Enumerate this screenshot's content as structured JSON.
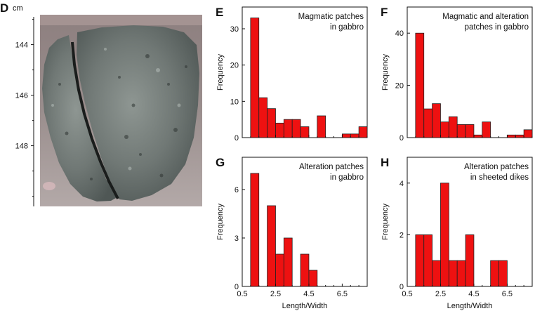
{
  "core_image": {
    "panel_label": "D",
    "unit": "cm",
    "depth_ticks": [
      "144",
      "146",
      "148"
    ],
    "depth_tick_values": [
      144,
      146,
      148
    ],
    "depth_range": [
      142.9,
      150.4
    ]
  },
  "chart_data": [
    {
      "type": "bar",
      "panel": "E",
      "annotation": [
        "Magmatic patches",
        "in gabbro"
      ],
      "xlabel": "",
      "ylabel": "Frequency",
      "xlim": [
        0.5,
        8.0
      ],
      "ylim": [
        0,
        36
      ],
      "yticks": [
        0,
        10,
        20,
        30
      ],
      "xticks": [
        0.5,
        2.5,
        4.5,
        6.5
      ],
      "bin_start": 1.0,
      "bin_width": 0.5,
      "values": [
        33,
        11,
        8,
        4,
        5,
        5,
        3,
        0,
        6,
        0,
        0,
        1,
        1,
        3
      ]
    },
    {
      "type": "bar",
      "panel": "F",
      "annotation": [
        "Magmatic and alteration",
        "patches in gabbro"
      ],
      "xlabel": "",
      "ylabel": "Frequency",
      "xlim": [
        0.5,
        8.0
      ],
      "ylim": [
        0,
        50
      ],
      "yticks": [
        0,
        20,
        40
      ],
      "xticks": [
        0.5,
        2.5,
        4.5,
        6.5
      ],
      "bin_start": 1.0,
      "bin_width": 0.5,
      "values": [
        40,
        11,
        13,
        6,
        8,
        5,
        5,
        1,
        6,
        0,
        0,
        1,
        1,
        3
      ]
    },
    {
      "type": "bar",
      "panel": "G",
      "annotation": [
        "Alteration patches",
        "in gabbro"
      ],
      "xlabel": "Length/Width",
      "ylabel": "Frequency",
      "xlim": [
        0.5,
        8.0
      ],
      "ylim": [
        0,
        8
      ],
      "yticks": [
        0,
        3,
        6
      ],
      "xticks": [
        0.5,
        2.5,
        4.5,
        6.5
      ],
      "tick_labels": [
        "0.5",
        "2.5",
        "4.5",
        "6.5"
      ],
      "bin_start": 1.0,
      "bin_width": 0.5,
      "values": [
        7,
        0,
        5,
        2,
        3,
        0,
        2,
        1,
        0,
        0,
        0,
        0,
        0,
        0
      ]
    },
    {
      "type": "bar",
      "panel": "H",
      "annotation": [
        "Alteration patches",
        "in sheeted dikes"
      ],
      "xlabel": "Length/Width",
      "ylabel": "Frequency",
      "xlim": [
        0.5,
        8.0
      ],
      "ylim": [
        0,
        5
      ],
      "yticks": [
        0,
        2,
        4
      ],
      "xticks": [
        0.5,
        2.5,
        4.5,
        6.5
      ],
      "tick_labels": [
        "0.5",
        "2.5",
        "4.5",
        "6.5"
      ],
      "bin_start": 1.0,
      "bin_width": 0.5,
      "values": [
        2,
        2,
        1,
        4,
        1,
        1,
        2,
        0,
        0,
        1,
        1,
        0,
        0,
        0
      ]
    }
  ],
  "colors": {
    "bar_fill": "#ee1111",
    "bar_stroke": "#222222",
    "axis": "#111111"
  }
}
